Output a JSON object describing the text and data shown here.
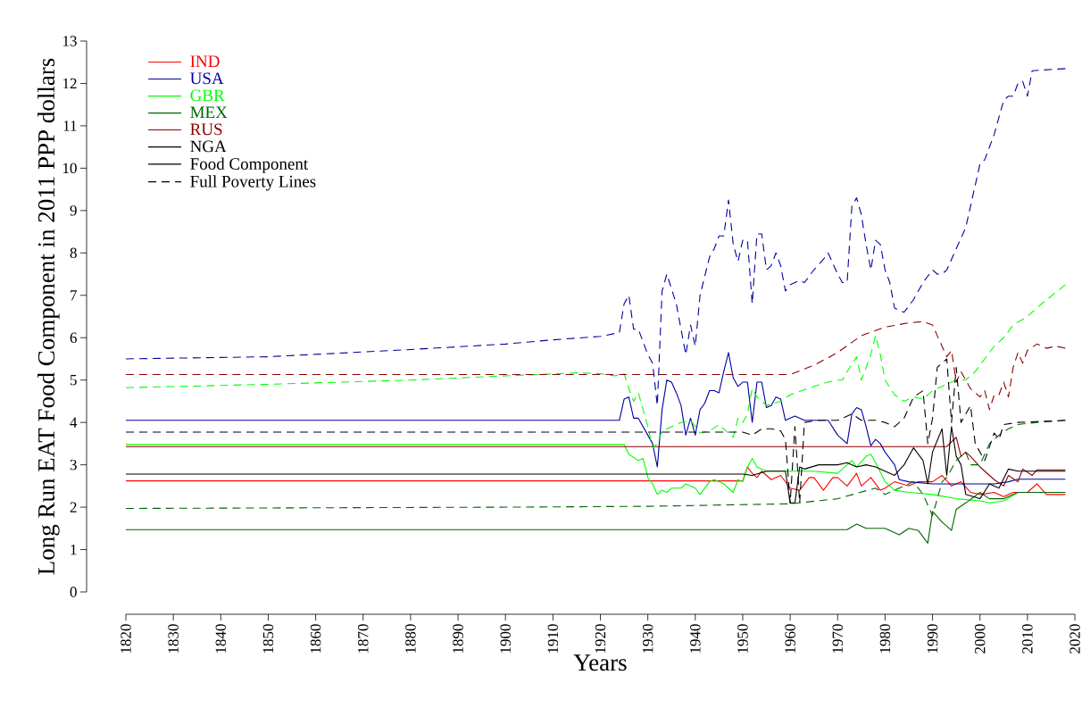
{
  "chart_data": {
    "type": "line",
    "xlabel": "Years",
    "ylabel": "Long Run EAT Food Component in 2011 PPP dollars",
    "xlim": [
      1820,
      2020
    ],
    "ylim": [
      0,
      13
    ],
    "xticks": [
      1820,
      1830,
      1840,
      1850,
      1860,
      1870,
      1880,
      1890,
      1900,
      1910,
      1920,
      1930,
      1940,
      1950,
      1960,
      1970,
      1980,
      1990,
      2000,
      2010,
      2020
    ],
    "yticks": [
      0,
      1,
      2,
      3,
      4,
      5,
      6,
      7,
      8,
      9,
      10,
      11,
      12,
      13
    ],
    "grid": false,
    "legend": "top left",
    "annotations": [
      "Food Component",
      "Full Poverty Lines"
    ],
    "series": [
      {
        "name": "IND",
        "color": "#ff0000",
        "line_style": "solid",
        "x": [
          1820,
          1950,
          1951,
          1952,
          1953,
          1954,
          1956,
          1958,
          1960,
          1962,
          1964,
          1965,
          1967,
          1969,
          1970,
          1972,
          1974,
          1975,
          1977,
          1979,
          1980,
          1982,
          1985,
          1987,
          1990,
          1992,
          1994,
          1996,
          1998,
          2000,
          2003,
          2005,
          2007,
          2010,
          2012,
          2014,
          2018
        ],
        "values": [
          2.62,
          2.62,
          2.95,
          2.8,
          2.7,
          2.85,
          2.65,
          2.75,
          2.45,
          2.4,
          2.7,
          2.7,
          2.4,
          2.7,
          2.7,
          2.5,
          2.8,
          2.5,
          2.7,
          2.4,
          2.45,
          2.6,
          2.5,
          2.6,
          2.6,
          2.75,
          2.5,
          2.6,
          2.35,
          2.3,
          2.35,
          2.25,
          2.35,
          2.35,
          2.55,
          2.3,
          2.3
        ]
      },
      {
        "name": "USA",
        "color": "#0000a0",
        "line_style": "solid",
        "x": [
          1820,
          1924,
          1925,
          1926,
          1927,
          1928,
          1930,
          1931,
          1932,
          1933,
          1934,
          1935,
          1936,
          1937,
          1938,
          1939,
          1940,
          1941,
          1942,
          1943,
          1944,
          1945,
          1946,
          1947,
          1948,
          1949,
          1950,
          1951,
          1952,
          1953,
          1954,
          1955,
          1956,
          1957,
          1958,
          1959,
          1961,
          1963,
          1965,
          1968,
          1970,
          1972,
          1973,
          1974,
          1975,
          1976,
          1977,
          1978,
          1979,
          1980,
          1982,
          1983,
          1985,
          1990,
          2000,
          2003,
          2006,
          2008,
          2018
        ],
        "values": [
          4.05,
          4.05,
          4.55,
          4.6,
          4.1,
          4.1,
          3.7,
          3.5,
          2.95,
          4.3,
          5.0,
          4.95,
          4.7,
          4.4,
          3.7,
          4.1,
          3.7,
          4.3,
          4.45,
          4.75,
          4.75,
          4.7,
          5.2,
          5.65,
          5.05,
          4.85,
          4.95,
          4.95,
          4.0,
          4.95,
          4.95,
          4.35,
          4.4,
          4.6,
          4.55,
          4.05,
          4.15,
          4.05,
          4.05,
          4.05,
          3.7,
          3.5,
          4.2,
          4.35,
          4.3,
          3.9,
          3.45,
          3.6,
          3.5,
          3.3,
          3.0,
          2.65,
          2.6,
          2.55,
          2.55,
          2.55,
          2.6,
          2.66,
          2.66
        ]
      },
      {
        "name": "GBR",
        "color": "#00ff00",
        "line_style": "solid",
        "x": [
          1820,
          1925,
          1926,
          1928,
          1929,
          1930,
          1931,
          1932,
          1933,
          1934,
          1935,
          1937,
          1938,
          1940,
          1941,
          1943,
          1944,
          1946,
          1948,
          1949,
          1950,
          1951,
          1952,
          1953,
          1955,
          1960,
          1965,
          1970,
          1972,
          1973,
          1974,
          1976,
          1977,
          1978,
          1980,
          1982,
          1985,
          1990,
          1995,
          2000,
          2002,
          2005,
          2008,
          2018
        ],
        "values": [
          3.48,
          3.48,
          3.25,
          3.1,
          3.15,
          2.7,
          2.55,
          2.3,
          2.4,
          2.35,
          2.45,
          2.45,
          2.55,
          2.45,
          2.3,
          2.6,
          2.65,
          2.55,
          2.35,
          2.65,
          2.6,
          2.95,
          3.15,
          2.95,
          2.85,
          2.85,
          2.85,
          2.8,
          3.0,
          3.1,
          2.95,
          3.2,
          3.25,
          3.05,
          2.6,
          2.4,
          2.35,
          2.3,
          2.2,
          2.15,
          2.1,
          2.15,
          2.35,
          2.35
        ]
      },
      {
        "name": "MEX",
        "color": "#006400",
        "line_style": "solid",
        "x": [
          1820,
          1972,
          1974,
          1976,
          1980,
          1983,
          1985,
          1987,
          1988,
          1989,
          1990,
          1992,
          1994,
          1995,
          1997,
          2000,
          2002,
          2005,
          2008,
          2018
        ],
        "values": [
          1.47,
          1.47,
          1.6,
          1.5,
          1.5,
          1.35,
          1.5,
          1.45,
          1.3,
          1.15,
          1.9,
          1.65,
          1.45,
          1.95,
          2.1,
          2.35,
          2.2,
          2.2,
          2.35,
          2.35
        ]
      },
      {
        "name": "RUS",
        "color": "#8b0000",
        "line_style": "solid",
        "x": [
          1820,
          1993,
          1995,
          1996,
          1997,
          1998,
          2000,
          2003,
          2005,
          2006,
          2008,
          2009,
          2011,
          2012,
          2018
        ],
        "values": [
          3.43,
          3.43,
          3.65,
          3.2,
          3.3,
          3.2,
          2.95,
          2.65,
          2.5,
          2.75,
          2.6,
          2.9,
          2.75,
          2.88,
          2.88
        ]
      },
      {
        "name": "NGA",
        "color": "#000000",
        "line_style": "solid",
        "x": [
          1820,
          1950,
          1952,
          1955,
          1959,
          1960,
          1961,
          1962,
          1963,
          1966,
          1970,
          1972,
          1974,
          1976,
          1978,
          1980,
          1982,
          1984,
          1986,
          1988,
          1989,
          1990,
          1992,
          1993,
          1994,
          1995,
          1996,
          1997,
          2000,
          2002,
          2004,
          2006,
          2008,
          2018
        ],
        "values": [
          2.78,
          2.78,
          2.75,
          2.85,
          2.85,
          2.1,
          2.1,
          2.95,
          2.9,
          3.0,
          3.0,
          3.05,
          2.95,
          3.0,
          2.95,
          2.85,
          2.75,
          3.0,
          3.4,
          3.1,
          2.55,
          3.3,
          3.85,
          2.75,
          3.9,
          3.2,
          3.0,
          2.3,
          2.2,
          2.55,
          2.45,
          2.9,
          2.85,
          2.85
        ]
      },
      {
        "color": "#0000a0",
        "line_style": "dashed",
        "x": [
          1820,
          1850,
          1880,
          1900,
          1910,
          1920,
          1924,
          1925,
          1926,
          1927,
          1928,
          1930,
          1931,
          1932,
          1933,
          1934,
          1936,
          1938,
          1939,
          1940,
          1941,
          1943,
          1944,
          1945,
          1946,
          1947,
          1948,
          1949,
          1950,
          1951,
          1952,
          1953,
          1954,
          1955,
          1956,
          1957,
          1958,
          1959,
          1960,
          1962,
          1963,
          1965,
          1967,
          1968,
          1970,
          1971,
          1972,
          1973,
          1974,
          1975,
          1976,
          1977,
          1978,
          1979,
          1980,
          1981,
          1982,
          1984,
          1986,
          1988,
          1990,
          1991,
          1992,
          1993,
          1995,
          1997,
          1999,
          2000,
          2001,
          2003,
          2005,
          2006,
          2007,
          2008,
          2009,
          2010,
          2011,
          2018
        ],
        "values": [
          5.5,
          5.55,
          5.72,
          5.85,
          5.95,
          6.03,
          6.12,
          6.8,
          7.0,
          6.2,
          6.2,
          5.6,
          5.4,
          4.4,
          7.1,
          7.5,
          6.8,
          5.6,
          6.3,
          5.8,
          7.0,
          7.9,
          8.1,
          8.4,
          8.4,
          9.25,
          8.2,
          7.8,
          8.3,
          8.3,
          6.8,
          8.45,
          8.45,
          7.6,
          7.7,
          8.0,
          7.7,
          7.1,
          7.25,
          7.35,
          7.3,
          7.6,
          7.85,
          8.0,
          7.5,
          7.3,
          7.3,
          9.1,
          9.3,
          8.9,
          8.2,
          7.6,
          8.3,
          8.2,
          7.6,
          7.3,
          6.7,
          6.6,
          6.9,
          7.3,
          7.6,
          7.5,
          7.5,
          7.6,
          8.1,
          8.6,
          9.6,
          10.1,
          10.2,
          10.8,
          11.6,
          11.7,
          11.7,
          12.0,
          12.05,
          11.7,
          12.3,
          12.35
        ]
      },
      {
        "color": "#00ff00",
        "line_style": "dashed",
        "x": [
          1820,
          1850,
          1880,
          1900,
          1915,
          1920,
          1923,
          1925,
          1926,
          1927,
          1928,
          1930,
          1931,
          1932,
          1933,
          1935,
          1937,
          1939,
          1940,
          1941,
          1943,
          1945,
          1948,
          1949,
          1950,
          1951,
          1952,
          1953,
          1955,
          1958,
          1960,
          1965,
          1968,
          1970,
          1971,
          1972,
          1974,
          1975,
          1976,
          1977,
          1978,
          1979,
          1980,
          1982,
          1984,
          1986,
          1988,
          1990,
          1992,
          1995,
          1997,
          1999,
          2001,
          2003,
          2005,
          2007,
          2010,
          2013,
          2018
        ],
        "values": [
          4.82,
          4.9,
          5.0,
          5.1,
          5.17,
          5.15,
          5.1,
          5.15,
          4.8,
          4.5,
          4.7,
          3.9,
          3.4,
          3.5,
          3.8,
          3.9,
          4.0,
          4.05,
          3.9,
          3.75,
          3.8,
          3.95,
          3.65,
          4.1,
          4.0,
          4.2,
          4.8,
          4.6,
          4.4,
          4.5,
          4.65,
          4.85,
          4.95,
          5.0,
          5.0,
          5.2,
          5.55,
          5.0,
          5.3,
          5.6,
          6.05,
          5.6,
          5.0,
          4.65,
          4.5,
          4.6,
          4.55,
          4.75,
          4.85,
          5.0,
          5.0,
          5.2,
          5.5,
          5.8,
          6.0,
          6.3,
          6.5,
          6.8,
          7.25
        ]
      },
      {
        "color": "#006400",
        "line_style": "dashed",
        "x": [
          1820,
          1900,
          1930,
          1960,
          1970,
          1978,
          1980,
          1984,
          1986,
          1988,
          1990,
          1992,
          1993,
          1995,
          1997,
          1998,
          2000,
          2002,
          2004,
          2006,
          2008,
          2012,
          2018
        ],
        "values": [
          1.97,
          2.0,
          2.02,
          2.08,
          2.2,
          2.45,
          2.3,
          2.5,
          2.6,
          2.3,
          1.8,
          2.6,
          2.7,
          3.1,
          3.3,
          3.0,
          3.0,
          3.5,
          3.7,
          3.85,
          3.95,
          4.0,
          4.05
        ]
      },
      {
        "color": "#8b0000",
        "line_style": "dashed",
        "x": [
          1820,
          1960,
          1965,
          1970,
          1975,
          1980,
          1985,
          1988,
          1990,
          1991,
          1992,
          1993,
          1994,
          1995,
          1996,
          1997,
          1998,
          2000,
          2001,
          2002,
          2003,
          2004,
          2005,
          2006,
          2007,
          2008,
          2009,
          2010,
          2012,
          2014,
          2016,
          2018
        ],
        "values": [
          5.13,
          5.13,
          5.35,
          5.65,
          6.05,
          6.25,
          6.35,
          6.38,
          6.3,
          6.05,
          5.8,
          5.55,
          5.7,
          4.95,
          5.2,
          5.0,
          4.8,
          4.6,
          4.75,
          4.3,
          4.65,
          4.65,
          4.95,
          4.6,
          5.3,
          5.65,
          5.4,
          5.7,
          5.85,
          5.75,
          5.8,
          5.75
        ]
      },
      {
        "color": "#000000",
        "line_style": "dashed",
        "x": [
          1820,
          1950,
          1952,
          1954,
          1956,
          1958,
          1959,
          1960,
          1961,
          1962,
          1963,
          1966,
          1970,
          1973,
          1975,
          1978,
          1980,
          1982,
          1984,
          1986,
          1988,
          1989,
          1990,
          1991,
          1993,
          1994,
          1995,
          1996,
          1998,
          1999,
          2001,
          2003,
          2004,
          2005,
          2008,
          2018
        ],
        "values": [
          3.77,
          3.77,
          3.7,
          3.85,
          3.85,
          3.8,
          3.6,
          2.1,
          3.9,
          2.1,
          4.0,
          4.05,
          4.05,
          4.2,
          4.05,
          4.05,
          4.0,
          3.9,
          4.1,
          4.6,
          4.75,
          3.5,
          4.1,
          5.3,
          5.5,
          4.0,
          5.3,
          4.0,
          4.4,
          3.5,
          3.1,
          3.75,
          3.6,
          3.95,
          4.0,
          4.05
        ]
      }
    ]
  }
}
